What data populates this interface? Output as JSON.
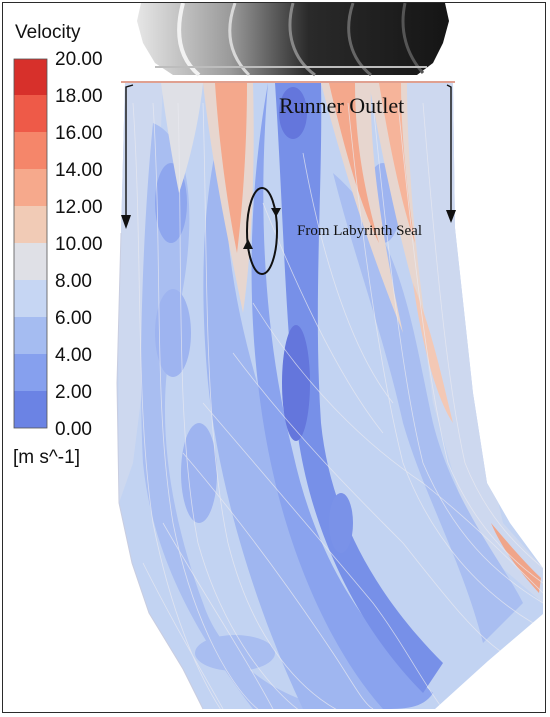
{
  "legend": {
    "title": "Velocity",
    "unit": "[m s^-1]",
    "ticks": [
      "20.00",
      "18.00",
      "16.00",
      "14.00",
      "12.00",
      "10.00",
      "8.00",
      "6.00",
      "4.00",
      "2.00",
      "0.00"
    ],
    "colors": [
      "#d7302b",
      "#ee5a48",
      "#f5866a",
      "#f6a98c",
      "#f1cbb6",
      "#dfe0e6",
      "#c6d6f3",
      "#a5bcf1",
      "#86a0ee",
      "#6b83e4",
      "#5563d6"
    ]
  },
  "annotations": {
    "runner_outlet": "Runner Outlet",
    "labyrinth_seal": "From Labyrinth Seal"
  }
}
